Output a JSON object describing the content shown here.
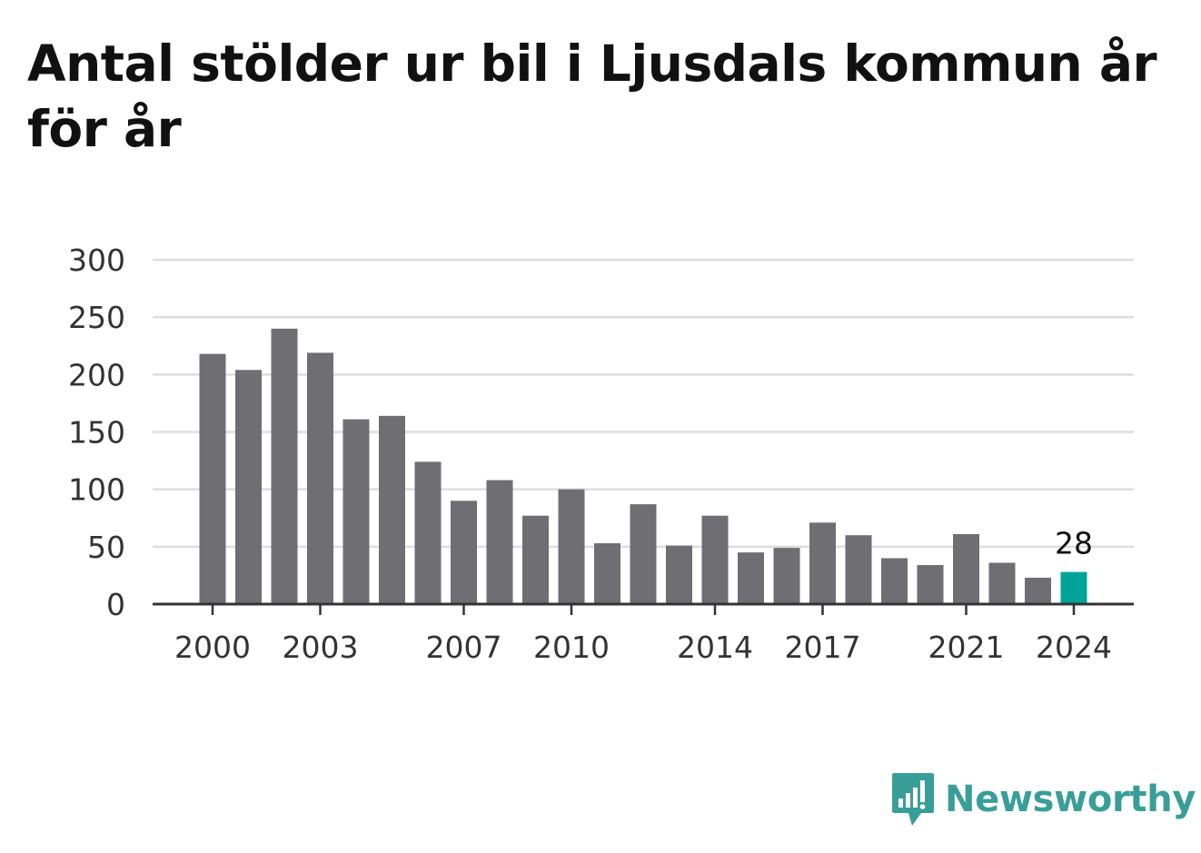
{
  "title": "Antal stölder ur bil i Ljusdals kommun år för år",
  "brand": {
    "name": "Newsworthy",
    "icon": "newsworthy-logo-icon",
    "color": "#3a9e98"
  },
  "colors": {
    "bar": "#6e6e73",
    "highlight": "#00a39a",
    "grid": "#dddddd",
    "axis": "#333333"
  },
  "chart_data": {
    "type": "bar",
    "categories": [
      "2000",
      "2001",
      "2002",
      "2003",
      "2004",
      "2005",
      "2006",
      "2007",
      "2008",
      "2009",
      "2010",
      "2011",
      "2012",
      "2013",
      "2014",
      "2015",
      "2016",
      "2017",
      "2018",
      "2019",
      "2020",
      "2021",
      "2022",
      "2023",
      "2024"
    ],
    "values": [
      218,
      204,
      240,
      219,
      161,
      164,
      124,
      90,
      108,
      77,
      100,
      53,
      87,
      51,
      77,
      45,
      49,
      71,
      60,
      40,
      34,
      61,
      36,
      23,
      28
    ],
    "ylim": [
      0,
      300
    ],
    "yticks": [
      "0",
      "50",
      "100",
      "150",
      "200",
      "250",
      "300"
    ],
    "xtick_labels": [
      "2000",
      "2003",
      "2007",
      "2010",
      "2014",
      "2017",
      "2021",
      "2024"
    ],
    "highlight": {
      "category": "2024",
      "label": "28"
    },
    "grid": true,
    "xlabel": "",
    "ylabel": ""
  }
}
